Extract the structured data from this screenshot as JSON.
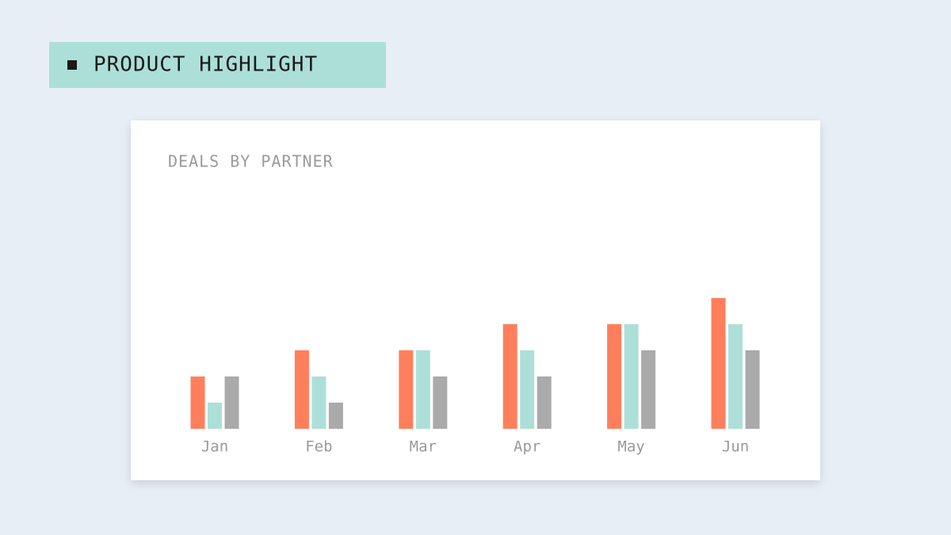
{
  "header": {
    "tag": "PRODUCT HIGHLIGHT"
  },
  "chart_data": {
    "type": "bar",
    "title": "DEALS BY PARTNER",
    "categories": [
      "Jan",
      "Feb",
      "Mar",
      "Apr",
      "May",
      "Jun"
    ],
    "series": [
      {
        "color": "#ff7f5c",
        "values": [
          2,
          3,
          3,
          4,
          4,
          5
        ]
      },
      {
        "color": "#addfd9",
        "values": [
          1,
          2,
          3,
          3,
          4,
          4
        ]
      },
      {
        "color": "#aaaaaa",
        "values": [
          2,
          1,
          2,
          2,
          3,
          3
        ]
      }
    ],
    "ylim": [
      0,
      10
    ]
  }
}
